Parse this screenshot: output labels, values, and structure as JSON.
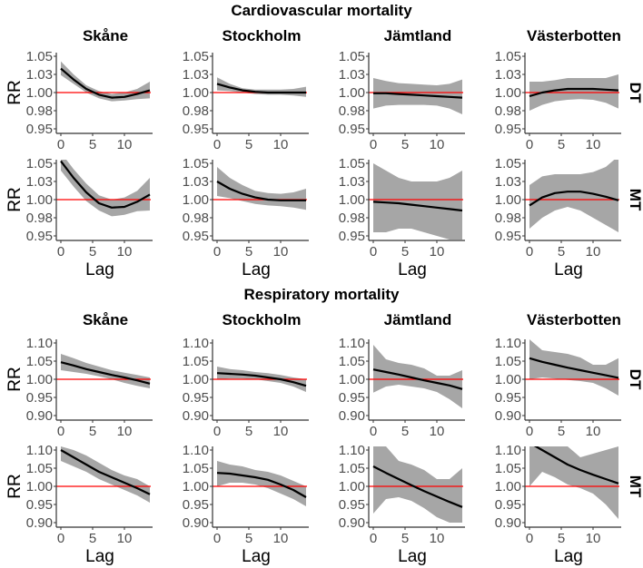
{
  "chart_data": {
    "type": "line",
    "titles": [
      "Cardiovascular mortality",
      "Respiratory mortality"
    ],
    "columns": [
      "Skåne",
      "Stockholm",
      "Jämtland",
      "Västerbotten"
    ],
    "row_strips": [
      "DT",
      "MT"
    ],
    "xlabel": "Lag",
    "ylabel": "RR",
    "x": [
      0,
      2,
      4,
      6,
      8,
      10,
      12,
      14
    ],
    "xticks": [
      0,
      5,
      10
    ],
    "xlim": [
      0,
      14
    ],
    "reference_line": 1.0,
    "colors": {
      "estimate": "#000000",
      "band": "#a6a6a6",
      "reference": "#ff0000"
    },
    "groups": [
      {
        "title_index": 0,
        "ylim": [
          0.95,
          1.05
        ],
        "yticks": [
          0.95,
          0.975,
          1.0,
          1.025,
          1.05
        ],
        "ytick_labels": [
          "0.95",
          "0.98",
          "1.00",
          "1.03",
          "1.05"
        ],
        "rows": [
          {
            "strip": "DT",
            "panels": [
              {
                "est": [
                  1.033,
                  1.018,
                  1.005,
                  0.997,
                  0.993,
                  0.994,
                  0.998,
                  1.003
                ],
                "lower": [
                  1.024,
                  1.012,
                  1.0,
                  0.992,
                  0.988,
                  0.989,
                  0.991,
                  0.992
                ],
                "upper": [
                  1.043,
                  1.025,
                  1.01,
                  1.002,
                  0.998,
                  1.0,
                  1.005,
                  1.015
                ]
              },
              {
                "est": [
                  1.012,
                  1.007,
                  1.003,
                  1.001,
                  1.0,
                  1.0,
                  1.0,
                  1.0
                ],
                "lower": [
                  1.003,
                  1.002,
                  1.0,
                  0.998,
                  0.997,
                  0.997,
                  0.996,
                  0.994
                ],
                "upper": [
                  1.021,
                  1.012,
                  1.006,
                  1.004,
                  1.004,
                  1.004,
                  1.005,
                  1.008
                ]
              },
              {
                "est": [
                  0.999,
                  0.999,
                  0.998,
                  0.997,
                  0.996,
                  0.995,
                  0.994,
                  0.993
                ],
                "lower": [
                  0.978,
                  0.982,
                  0.983,
                  0.983,
                  0.983,
                  0.982,
                  0.978,
                  0.97
                ],
                "upper": [
                  1.02,
                  1.016,
                  1.013,
                  1.012,
                  1.011,
                  1.01,
                  1.012,
                  1.018
                ]
              },
              {
                "est": [
                  0.995,
                  1.0,
                  1.003,
                  1.005,
                  1.005,
                  1.005,
                  1.004,
                  1.003
                ],
                "lower": [
                  0.975,
                  0.983,
                  0.988,
                  0.99,
                  0.991,
                  0.99,
                  0.986,
                  0.978
                ],
                "upper": [
                  1.015,
                  1.015,
                  1.017,
                  1.02,
                  1.02,
                  1.02,
                  1.02,
                  1.025
                ]
              }
            ]
          },
          {
            "strip": "MT",
            "panels": [
              {
                "est": [
                  1.053,
                  1.03,
                  1.01,
                  0.995,
                  0.989,
                  0.99,
                  0.997,
                  1.007
                ],
                "lower": [
                  1.04,
                  1.018,
                  0.998,
                  0.985,
                  0.977,
                  0.979,
                  0.984,
                  0.985
                ],
                "upper": [
                  1.065,
                  1.042,
                  1.022,
                  1.006,
                  1.0,
                  1.003,
                  1.012,
                  1.03
                ]
              },
              {
                "est": [
                  1.025,
                  1.015,
                  1.008,
                  1.003,
                  1.0,
                  0.999,
                  0.999,
                  0.999
                ],
                "lower": [
                  1.005,
                  1.002,
                  0.998,
                  0.994,
                  0.992,
                  0.991,
                  0.989,
                  0.986
                ],
                "upper": [
                  1.045,
                  1.03,
                  1.02,
                  1.012,
                  1.009,
                  1.008,
                  1.01,
                  1.015
                ]
              },
              {
                "est": [
                  0.997,
                  0.996,
                  0.995,
                  0.993,
                  0.991,
                  0.989,
                  0.987,
                  0.985
                ],
                "lower": [
                  0.955,
                  0.955,
                  0.96,
                  0.96,
                  0.955,
                  0.95,
                  0.945,
                  0.94
                ],
                "upper": [
                  1.05,
                  1.04,
                  1.03,
                  1.025,
                  1.025,
                  1.025,
                  1.03,
                  1.04
                ]
              },
              {
                "est": [
                  0.992,
                  1.003,
                  1.009,
                  1.011,
                  1.011,
                  1.008,
                  1.004,
                  0.999
                ],
                "lower": [
                  0.96,
                  0.975,
                  0.985,
                  0.99,
                  0.985,
                  0.975,
                  0.965,
                  0.955
                ],
                "upper": [
                  1.02,
                  1.032,
                  1.035,
                  1.035,
                  1.035,
                  1.038,
                  1.045,
                  1.06
                ]
              }
            ]
          }
        ]
      },
      {
        "title_index": 1,
        "ylim": [
          0.9,
          1.1
        ],
        "yticks": [
          0.9,
          0.95,
          1.0,
          1.05,
          1.1
        ],
        "ytick_labels": [
          "0.90",
          "0.95",
          "1.00",
          "1.05",
          "1.10"
        ],
        "rows": [
          {
            "strip": "DT",
            "panels": [
              {
                "est": [
                  1.047,
                  1.038,
                  1.028,
                  1.02,
                  1.012,
                  1.005,
                  0.997,
                  0.988
                ],
                "lower": [
                  1.025,
                  1.02,
                  1.015,
                  1.008,
                  1.0,
                  0.99,
                  0.982,
                  0.975
                ],
                "upper": [
                  1.07,
                  1.058,
                  1.045,
                  1.035,
                  1.025,
                  1.018,
                  1.012,
                  1.005
                ]
              },
              {
                "est": [
                  1.017,
                  1.015,
                  1.013,
                  1.01,
                  1.005,
                  1.0,
                  0.992,
                  0.982
                ],
                "lower": [
                  1.0,
                  1.002,
                  1.002,
                  1.0,
                  0.995,
                  0.99,
                  0.98,
                  0.965
                ],
                "upper": [
                  1.035,
                  1.028,
                  1.025,
                  1.02,
                  1.017,
                  1.012,
                  1.005,
                  1.0
                ]
              },
              {
                "est": [
                  1.027,
                  1.02,
                  1.013,
                  1.005,
                  0.997,
                  0.99,
                  0.983,
                  0.973
                ],
                "lower": [
                  0.963,
                  0.98,
                  0.985,
                  0.98,
                  0.975,
                  0.965,
                  0.945,
                  0.92
                ],
                "upper": [
                  1.095,
                  1.055,
                  1.045,
                  1.04,
                  1.03,
                  1.01,
                  1.01,
                  1.025
                ]
              },
              {
                "est": [
                  1.058,
                  1.048,
                  1.04,
                  1.032,
                  1.025,
                  1.018,
                  1.011,
                  1.004
                ],
                "lower": [
                  1.0,
                  1.005,
                  1.002,
                  0.998,
                  0.995,
                  0.99,
                  0.975,
                  0.955
                ],
                "upper": [
                  1.11,
                  1.08,
                  1.075,
                  1.07,
                  1.06,
                  1.04,
                  1.04,
                  1.058
                ]
              }
            ]
          },
          {
            "strip": "MT",
            "panels": [
              {
                "est": [
                  1.1,
                  1.08,
                  1.06,
                  1.04,
                  1.025,
                  1.01,
                  0.995,
                  0.978
                ],
                "lower": [
                  1.07,
                  1.055,
                  1.04,
                  1.02,
                  1.005,
                  0.99,
                  0.975,
                  0.955
                ],
                "upper": [
                  1.11,
                  1.1,
                  1.085,
                  1.065,
                  1.045,
                  1.03,
                  1.02,
                  1.0
                ]
              },
              {
                "est": [
                  1.037,
                  1.035,
                  1.03,
                  1.025,
                  1.018,
                  1.005,
                  0.99,
                  0.97
                ],
                "lower": [
                  1.0,
                  1.01,
                  1.01,
                  1.005,
                  0.995,
                  0.98,
                  0.965,
                  0.945
                ],
                "upper": [
                  1.07,
                  1.06,
                  1.055,
                  1.045,
                  1.04,
                  1.03,
                  1.015,
                  1.0
                ]
              },
              {
                "est": [
                  1.055,
                  1.037,
                  1.02,
                  1.003,
                  0.987,
                  0.972,
                  0.957,
                  0.943
                ],
                "lower": [
                  0.925,
                  0.965,
                  0.97,
                  0.96,
                  0.94,
                  0.915,
                  0.9,
                  0.9
                ],
                "upper": [
                  1.11,
                  1.11,
                  1.07,
                  1.06,
                  1.045,
                  1.02,
                  1.02,
                  1.05
                ]
              },
              {
                "est": [
                  1.12,
                  1.1,
                  1.08,
                  1.06,
                  1.045,
                  1.032,
                  1.02,
                  1.008
                ],
                "lower": [
                  1.0,
                  1.04,
                  1.025,
                  1.005,
                  0.995,
                  0.98,
                  0.95,
                  0.91
                ],
                "upper": [
                  1.11,
                  1.11,
                  1.11,
                  1.11,
                  1.08,
                  1.09,
                  1.1,
                  1.11
                ]
              }
            ]
          }
        ]
      }
    ]
  }
}
